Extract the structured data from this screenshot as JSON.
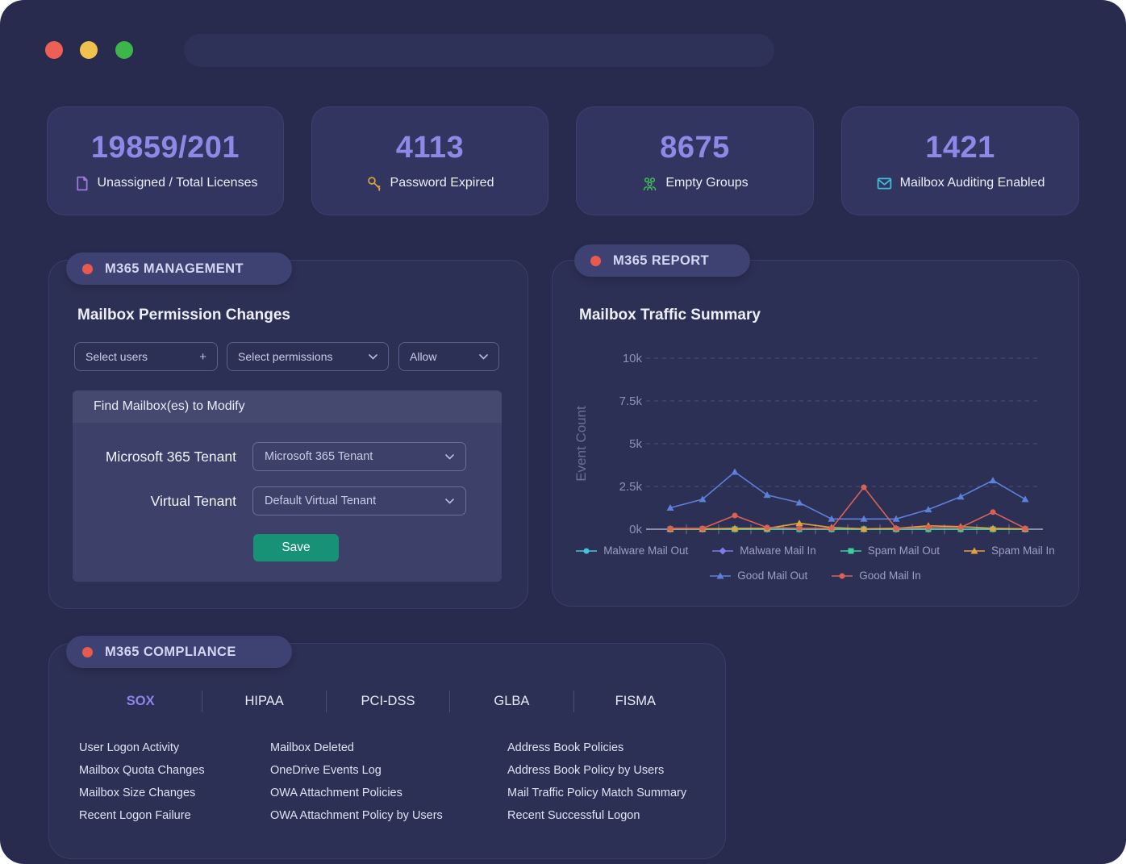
{
  "chrome": {
    "traffic_lights": {
      "close": "#ee6055",
      "minimize": "#efc24e",
      "maximize": "#3cb54a"
    },
    "address_bar_value": ""
  },
  "stats": [
    {
      "value": "19859/201",
      "label": "Unassigned / Total Licenses",
      "icon": "document-icon",
      "icon_color": "#9d7bdc"
    },
    {
      "value": "4113",
      "label": "Password Expired",
      "icon": "key-icon",
      "icon_color": "#d1a440"
    },
    {
      "value": "8675",
      "label": "Empty Groups",
      "icon": "users-icon",
      "icon_color": "#45b860"
    },
    {
      "value": "1421",
      "label": "Mailbox Auditing Enabled",
      "icon": "mail-icon",
      "icon_color": "#3fc0d8"
    }
  ],
  "management": {
    "badge": "M365 MANAGEMENT",
    "heading": "Mailbox Permission Changes",
    "select_users": "Select users",
    "select_users_affix": "+",
    "select_permissions": "Select permissions",
    "allow": "Allow",
    "find_box": {
      "title": "Find Mailbox(es) to Modify",
      "tenant_label": "Microsoft 365 Tenant",
      "tenant_value": "Microsoft 365 Tenant",
      "virtual_label": "Virtual Tenant",
      "virtual_value": "Default Virtual Tenant",
      "save_label": "Save"
    }
  },
  "report": {
    "badge": "M365 REPORT",
    "heading": "Mailbox Traffic Summary"
  },
  "chart_data": {
    "type": "line",
    "title": "Mailbox Traffic Summary",
    "ylabel": "Event Count",
    "xlabel": "",
    "ylim": [
      0,
      10000
    ],
    "y_ticks": [
      {
        "label": "0k",
        "value": 0
      },
      {
        "label": "2.5k",
        "value": 2500
      },
      {
        "label": "5k",
        "value": 5000
      },
      {
        "label": "7.5k",
        "value": 7500
      },
      {
        "label": "10k",
        "value": 10000
      }
    ],
    "grid": "dashed-horizontal",
    "legend_position": "bottom",
    "x_count": 12,
    "series": [
      {
        "name": "Malware Mail Out",
        "color": "#45c2dd",
        "marker": "circle",
        "values": [
          0,
          0,
          0,
          0,
          0,
          0,
          0,
          0,
          0,
          0,
          0,
          0
        ]
      },
      {
        "name": "Malware Mail In",
        "color": "#7b7ee2",
        "marker": "diamond",
        "values": [
          0,
          0,
          0,
          0,
          0,
          0,
          0,
          0,
          0,
          0,
          0,
          0
        ]
      },
      {
        "name": "Spam Mail Out",
        "color": "#3bcf9e",
        "marker": "square",
        "values": [
          0,
          0,
          0,
          0,
          0,
          0,
          0,
          0,
          0,
          0,
          0,
          0
        ]
      },
      {
        "name": "Spam Mail In",
        "color": "#e2a33c",
        "marker": "triangle",
        "values": [
          20,
          20,
          50,
          50,
          350,
          100,
          20,
          50,
          200,
          150,
          50,
          20
        ]
      },
      {
        "name": "Good Mail Out",
        "color": "#5d80d8",
        "marker": "triangle",
        "values": [
          1250,
          1750,
          3350,
          2000,
          1550,
          600,
          600,
          600,
          1150,
          1900,
          2850,
          1750
        ]
      },
      {
        "name": "Good Mail In",
        "color": "#dc6054",
        "marker": "circle",
        "values": [
          50,
          50,
          800,
          100,
          50,
          50,
          2450,
          50,
          100,
          100,
          1000,
          50
        ]
      }
    ],
    "legend_rows": [
      [
        0,
        1,
        2,
        3
      ],
      [
        4,
        5
      ]
    ]
  },
  "compliance": {
    "badge": "M365 COMPLIANCE",
    "tabs": [
      {
        "label": "SOX",
        "active": true
      },
      {
        "label": "HIPAA",
        "active": false
      },
      {
        "label": "PCI-DSS",
        "active": false
      },
      {
        "label": "GLBA",
        "active": false
      },
      {
        "label": "FISMA",
        "active": false
      }
    ],
    "columns": [
      [
        "User Logon Activity",
        "Mailbox Quota Changes",
        "Mailbox Size Changes",
        "Recent Logon Failure"
      ],
      [
        "Mailbox Deleted",
        "OneDrive Events Log",
        "OWA Attachment Policies",
        "OWA Attachment Policy by Users"
      ],
      [
        "Address Book Policies",
        "Address Book Policy by Users",
        "Mail Traffic Policy Match Summary",
        "Recent Successful Logon"
      ]
    ]
  },
  "colors": {
    "window_bg": "#282b4e",
    "card_bg": "#32355f",
    "panel_bg": "#2d3055",
    "accent_number": "#8d89e6",
    "badge_dot": "#e8594e",
    "save_green": "#189277",
    "tab_active": "#8d85ea"
  }
}
